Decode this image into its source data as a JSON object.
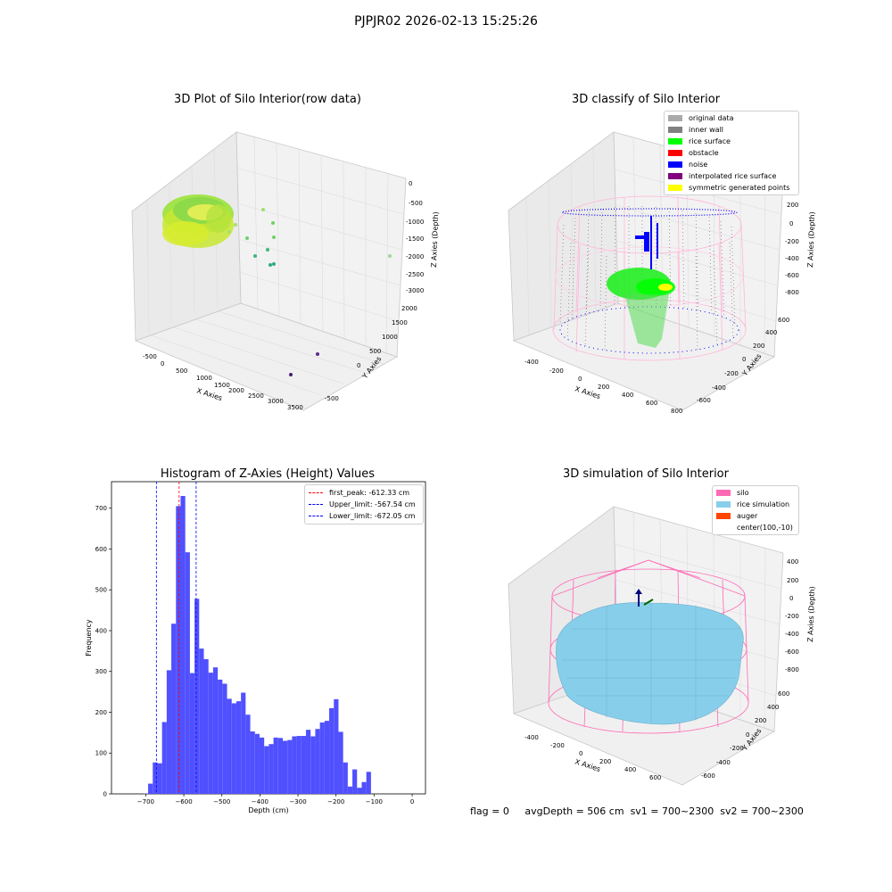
{
  "suptitle": "PJPJR02 2026-02-13 15:25:26",
  "colors": {
    "hist_bar": "#5050ff",
    "first_peak_line": "#ff0000",
    "limit_line": "#0000ff",
    "gray": "#aaaaaa",
    "inner_wall": "#808080",
    "rice_surface": "#00ff00",
    "obstacle": "#ff0000",
    "noise": "#0000ff",
    "interpolated": "#800080",
    "symmetric": "#ffff00",
    "silo": "#ff69b4",
    "rice_sim": "#87ceeb",
    "auger": "#ff4500"
  },
  "panel1": {
    "title": "3D Plot of Silo Interior(row data)",
    "x_label": "X Axies",
    "y_label": "Y Axies",
    "z_label": "Z Axies (Depth)",
    "x_ticks": [
      "-500",
      "0",
      "500",
      "1000",
      "1500",
      "2000",
      "2500",
      "3000",
      "3500"
    ],
    "y_ticks": [
      "-500",
      "0",
      "500",
      "1000",
      "1500",
      "2000"
    ],
    "z_ticks": [
      "0",
      "-500",
      "-1000",
      "-1500",
      "-2000",
      "-2500",
      "-3000"
    ]
  },
  "panel2": {
    "title": "3D classify of Silo Interior",
    "x_label": "X Axies",
    "y_label": "Y Axies",
    "z_label": "Z Axies (Depth)",
    "x_ticks": [
      "-400",
      "-200",
      "0",
      "200",
      "400",
      "600",
      "800"
    ],
    "y_ticks": [
      "-600",
      "-400",
      "-200",
      "0",
      "200",
      "400",
      "600"
    ],
    "z_ticks": [
      "200",
      "0",
      "-200",
      "-400",
      "-600",
      "-800"
    ],
    "legend": [
      {
        "label": "original data",
        "color": "#aaaaaa"
      },
      {
        "label": "inner wall",
        "color": "#808080"
      },
      {
        "label": "rice surface",
        "color": "#00ff00"
      },
      {
        "label": "obstacle",
        "color": "#ff0000"
      },
      {
        "label": "noise",
        "color": "#0000ff"
      },
      {
        "label": "interpolated rice surface",
        "color": "#800080"
      },
      {
        "label": "symmetric generated points",
        "color": "#ffff00"
      }
    ]
  },
  "panel4": {
    "title": "3D simulation of Silo Interior",
    "x_label": "X Axies",
    "y_label": "Y Axies",
    "z_label": "Z Axies (Depth)",
    "x_ticks": [
      "-400",
      "-200",
      "0",
      "200",
      "400",
      "600"
    ],
    "y_ticks": [
      "-600",
      "-400",
      "-200",
      "0",
      "200",
      "400",
      "600"
    ],
    "z_ticks": [
      "400",
      "200",
      "0",
      "-200",
      "-400",
      "-600",
      "-800"
    ],
    "legend": [
      {
        "label": "silo",
        "color": "#ff69b4"
      },
      {
        "label": "rice simulation",
        "color": "#87ceeb"
      },
      {
        "label": "auger",
        "color": "#ff4500"
      },
      {
        "label": "center(100,-10)",
        "color": ""
      }
    ]
  },
  "status": {
    "flag": "flag = 0",
    "avg": "avgDepth = 506 cm",
    "sv1": "sv1 = 700~2300",
    "sv2": "sv2 = 700~2300"
  },
  "chart_data": [
    {
      "type": "scatter",
      "title": "3D Plot of Silo Interior(row data)",
      "xlabel": "X Axies",
      "ylabel": "Y Axies",
      "zlabel": "Z Axies (Depth)",
      "xlim": [
        -700,
        3600
      ],
      "ylim": [
        -700,
        2300
      ],
      "zlim": [
        -3300,
        100
      ]
    },
    {
      "type": "scatter",
      "title": "3D classify of Silo Interior",
      "xlabel": "X Axies",
      "ylabel": "Y Axies",
      "zlabel": "Z Axies (Depth)",
      "xlim": [
        -500,
        850
      ],
      "ylim": [
        -700,
        700
      ],
      "zlim": [
        -900,
        300
      ],
      "series": [
        {
          "name": "original data"
        },
        {
          "name": "inner wall"
        },
        {
          "name": "rice surface"
        },
        {
          "name": "obstacle"
        },
        {
          "name": "noise"
        },
        {
          "name": "interpolated rice surface"
        },
        {
          "name": "symmetric generated points"
        }
      ]
    },
    {
      "type": "bar",
      "title": "Histogram of Z-Axies (Height) Values",
      "xlabel": "Depth (cm)",
      "ylabel": "Frequency",
      "xlim": [
        -790,
        35
      ],
      "ylim": [
        0,
        765
      ],
      "x_ticks": [
        -700,
        -600,
        -500,
        -400,
        -300,
        -200,
        -100,
        0
      ],
      "y_ticks": [
        0,
        100,
        200,
        300,
        400,
        500,
        600,
        700
      ],
      "bin_start": -706,
      "bin_width": 12.2,
      "values": [
        1,
        25,
        77,
        75,
        176,
        303,
        417,
        705,
        730,
        592,
        296,
        478,
        356,
        330,
        297,
        310,
        280,
        270,
        233,
        222,
        227,
        248,
        194,
        153,
        147,
        138,
        117,
        122,
        138,
        137,
        130,
        132,
        141,
        142,
        142,
        157,
        141,
        159,
        175,
        179,
        210,
        232,
        152,
        77,
        18,
        60,
        15,
        29,
        54
      ],
      "lines": [
        {
          "name": "first_peak: -612.33 cm",
          "x": -612.33
        },
        {
          "name": "Upper_limit: -567.54 cm",
          "x": -567.54
        },
        {
          "name": "Lower_limit: -672.05 cm",
          "x": -672.05
        }
      ]
    },
    {
      "type": "scatter",
      "title": "3D simulation of Silo Interior",
      "xlabel": "X Axies",
      "ylabel": "Y Axies",
      "zlabel": "Z Axies (Depth)",
      "xlim": [
        -500,
        700
      ],
      "ylim": [
        -700,
        700
      ],
      "zlim": [
        -900,
        450
      ],
      "series": [
        {
          "name": "silo"
        },
        {
          "name": "rice simulation"
        },
        {
          "name": "auger"
        },
        {
          "name": "center(100,-10)"
        }
      ]
    }
  ]
}
